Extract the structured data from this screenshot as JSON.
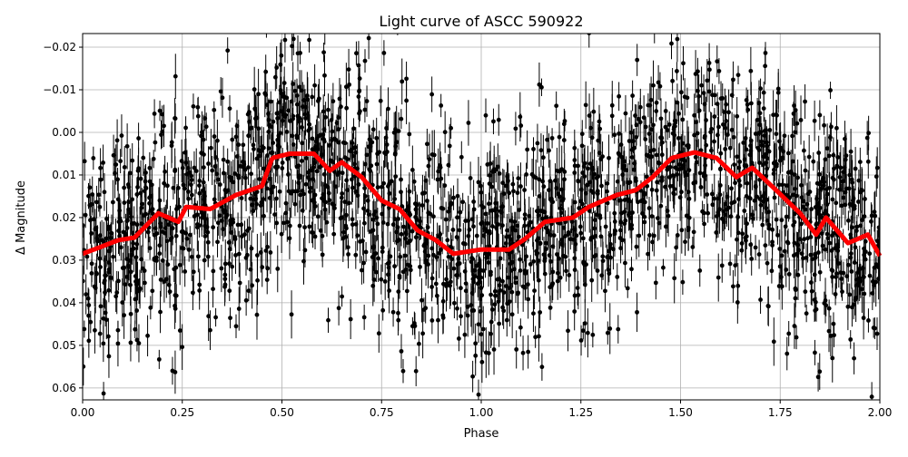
{
  "chart_data": {
    "type": "scatter",
    "title": "Light curve of ASCC 590922",
    "xlabel": "Phase",
    "ylabel": "Δ Magnitude",
    "xlim": [
      0,
      2
    ],
    "ylim": [
      0.0628,
      -0.0232
    ],
    "y_inverted": true,
    "grid": true,
    "x_ticks": [
      "0.00",
      "0.25",
      "0.50",
      "0.75",
      "1.00",
      "1.25",
      "1.50",
      "1.75",
      "2.00"
    ],
    "x_tick_values": [
      0,
      0.25,
      0.5,
      0.75,
      1,
      1.25,
      1.5,
      1.75,
      2
    ],
    "y_ticks": [
      "−0.02",
      "−0.01",
      "0.00",
      "0.01",
      "0.02",
      "0.03",
      "0.04",
      "0.05",
      "0.06"
    ],
    "y_tick_values": [
      -0.02,
      -0.01,
      0,
      0.01,
      0.02,
      0.03,
      0.04,
      0.05,
      0.06
    ],
    "colors": {
      "points": "#000000",
      "model": "#ff0000",
      "grid": "#b0b0b0"
    },
    "model_curve": {
      "phase": [
        0,
        0.09,
        0.13,
        0.19,
        0.24,
        0.26,
        0.32,
        0.385,
        0.45,
        0.476,
        0.52,
        0.58,
        0.62,
        0.65,
        0.7,
        0.75,
        0.795,
        0.84,
        0.886,
        0.93,
        1.0,
        1.07,
        1.11,
        1.16,
        1.23,
        1.27,
        1.34,
        1.387,
        1.43,
        1.478,
        1.535,
        1.59,
        1.64,
        1.68,
        1.74,
        1.8,
        1.84,
        1.865,
        1.92,
        1.97,
        2.0
      ],
      "dmag": [
        0.0285,
        0.0253,
        0.0247,
        0.019,
        0.021,
        0.0175,
        0.018,
        0.0147,
        0.0126,
        0.006,
        0.005,
        0.005,
        0.009,
        0.007,
        0.0105,
        0.016,
        0.018,
        0.023,
        0.0253,
        0.0285,
        0.0275,
        0.0275,
        0.025,
        0.021,
        0.02,
        0.0175,
        0.0147,
        0.0136,
        0.0105,
        0.006,
        0.0047,
        0.006,
        0.0105,
        0.0083,
        0.0136,
        0.019,
        0.024,
        0.02,
        0.026,
        0.024,
        0.029
      ]
    }
  }
}
